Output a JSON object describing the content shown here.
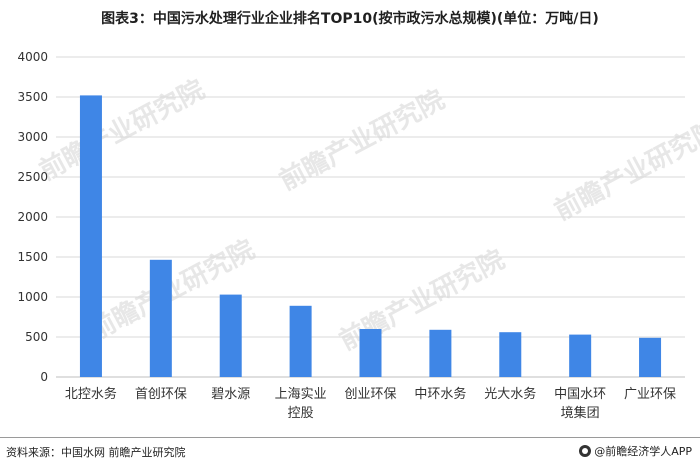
{
  "title": "图表3：中国污水处理行业企业排名TOP10(按市政污水总规模)(单位：万吨/日)",
  "watermark": "前瞻产业研究院",
  "footer": {
    "source": "资料来源：中国水网  前瞻产业研究院",
    "brand": "@前瞻经济学人APP"
  },
  "colors": {
    "bar": "#3f86e6",
    "grid": "#d9d9d9",
    "axis_text": "#333333"
  },
  "chart_data": {
    "type": "bar",
    "categories": [
      "北控水务",
      "首创环保",
      "碧水源",
      "上海实业控股",
      "创业环保",
      "中环水务",
      "光大水务",
      "中国水环境集团",
      "广业环保"
    ],
    "category_lines": [
      [
        "北控水务"
      ],
      [
        "首创环保"
      ],
      [
        "碧水源"
      ],
      [
        "上海实业",
        "控股"
      ],
      [
        "创业环保"
      ],
      [
        "中环水务"
      ],
      [
        "光大水务"
      ],
      [
        "中国水环",
        "境集团"
      ],
      [
        "广业环保"
      ]
    ],
    "values": [
      3520,
      1465,
      1030,
      890,
      600,
      590,
      560,
      530,
      490
    ],
    "ylim": [
      0,
      4000
    ],
    "yticks": [
      0,
      500,
      1000,
      1500,
      2000,
      2500,
      3000,
      3500,
      4000
    ],
    "grid": true,
    "legend": "none",
    "xlabel": "",
    "ylabel": ""
  }
}
